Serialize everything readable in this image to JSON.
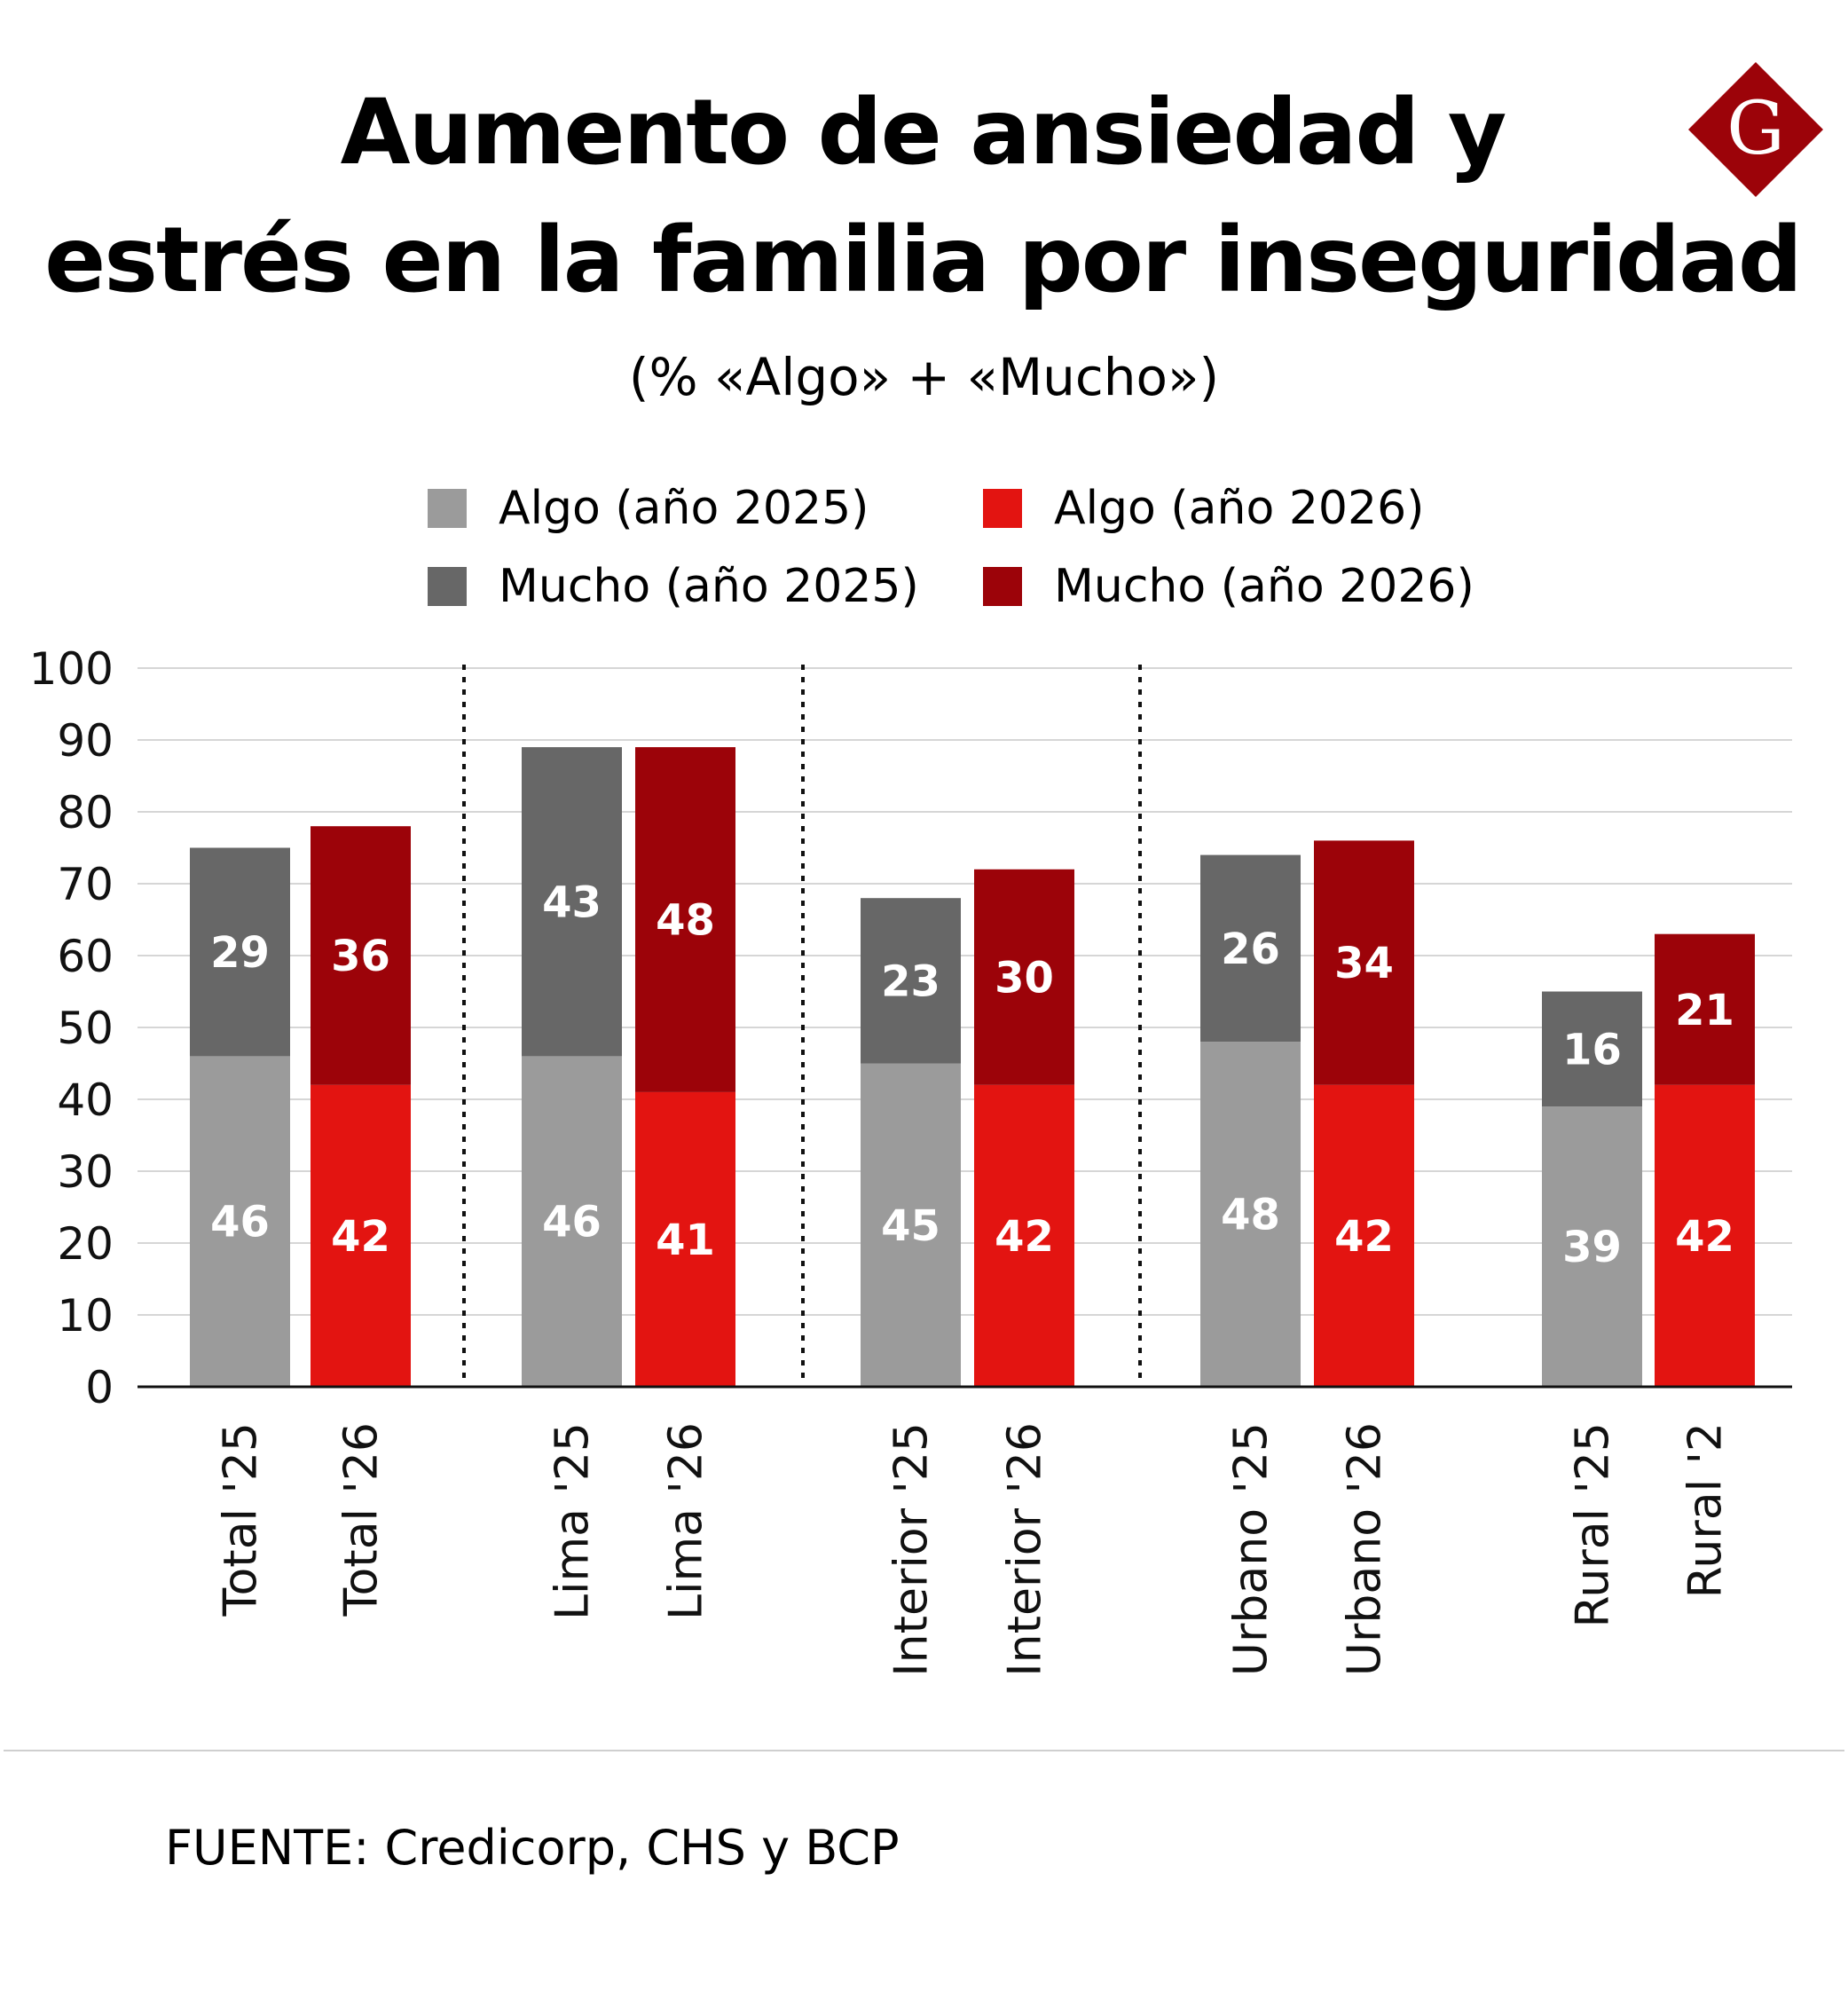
{
  "title_lines": [
    "Aumento de ansiedad y",
    "estrés en la familia por inseguridad"
  ],
  "subtitle": "(% «Algo» + «Mucho»)",
  "logo_letter": "G",
  "legend": [
    {
      "label": "Algo (año 2025)",
      "color": "#9b9b9b"
    },
    {
      "label": "Algo (año 2026)",
      "color": "#e31411"
    },
    {
      "label": "Mucho (año 2025)",
      "color": "#676767"
    },
    {
      "label": "Mucho (año 2026)",
      "color": "#9c0309"
    }
  ],
  "source": "FUENTE: Credicorp, CHS y BCP",
  "chart_data": {
    "type": "bar",
    "stacked": true,
    "categories": [
      "Total '25",
      "Total '26",
      "Lima '25",
      "Lima '26",
      "Interior '25",
      "Interior '26",
      "Urbano '25",
      "Urbano '26",
      "Rural '25",
      "Rural '2"
    ],
    "series": [
      {
        "name": "Algo (año 2025)",
        "values": [
          46,
          null,
          46,
          null,
          45,
          null,
          48,
          null,
          39,
          null
        ],
        "color": "#9b9b9b"
      },
      {
        "name": "Mucho (año 2025)",
        "values": [
          29,
          null,
          43,
          null,
          23,
          null,
          26,
          null,
          16,
          null
        ],
        "color": "#676767"
      },
      {
        "name": "Algo (año 2026)",
        "values": [
          null,
          42,
          null,
          41,
          null,
          42,
          null,
          42,
          null,
          42
        ],
        "color": "#e31411"
      },
      {
        "name": "Mucho (año 2026)",
        "values": [
          null,
          36,
          null,
          48,
          null,
          30,
          null,
          34,
          null,
          21
        ],
        "color": "#9c0309"
      }
    ],
    "ylim": [
      0,
      100
    ],
    "yticks": [
      "0",
      "10",
      "20",
      "30",
      "40",
      "50",
      "60",
      "70",
      "80",
      "90",
      "100"
    ],
    "grid": true,
    "legend_position": "top"
  }
}
